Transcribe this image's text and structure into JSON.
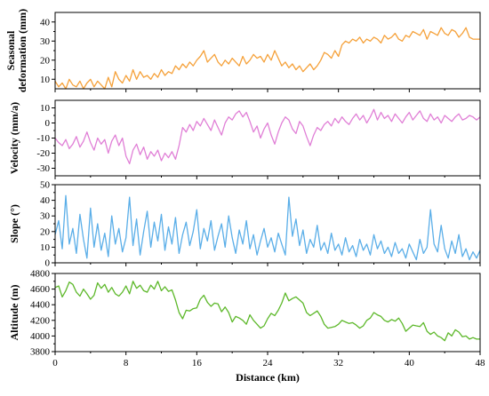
{
  "chart_data": [
    {
      "type": "line",
      "name": "seasonal",
      "ylabel": [
        "Seasonal",
        "deformation (mm)"
      ],
      "ylim": [
        5,
        45
      ],
      "yticks": [
        10,
        20,
        30,
        40
      ],
      "color": "#f5a13a",
      "series": [
        {
          "x": [
            0,
            0.4,
            0.8,
            1.2,
            1.6,
            2.0,
            2.4,
            2.8,
            3.2,
            3.6,
            4.0,
            4.4,
            4.8,
            5.2,
            5.6,
            6.0,
            6.4,
            6.8,
            7.2,
            7.6,
            8.0,
            8.4,
            8.8,
            9.2,
            9.6,
            10.0,
            10.4,
            10.8,
            11.2,
            11.6,
            12.0,
            12.4,
            12.8,
            13.2,
            13.6,
            14.0,
            14.4,
            14.8,
            15.2,
            15.6,
            16.0,
            16.4,
            16.8,
            17.2,
            17.6,
            18.0,
            18.4,
            18.8,
            19.2,
            19.6,
            20.0,
            20.4,
            20.8,
            21.2,
            21.6,
            22.0,
            22.4,
            22.8,
            23.2,
            23.6,
            24.0,
            24.4,
            24.8,
            25.2,
            25.6,
            26.0,
            26.4,
            26.8,
            27.2,
            27.6,
            28.0,
            28.4,
            28.8,
            29.2,
            29.6,
            30.0,
            30.4,
            30.8,
            31.2,
            31.6,
            32.0,
            32.4,
            32.8,
            33.2,
            33.6,
            34.0,
            34.4,
            34.8,
            35.2,
            35.6,
            36.0,
            36.4,
            36.8,
            37.2,
            37.6,
            38.0,
            38.4,
            38.8,
            39.2,
            39.6,
            40.0,
            40.4,
            40.8,
            41.2,
            41.6,
            42.0,
            42.4,
            42.8,
            43.2,
            43.6,
            44.0,
            44.4,
            44.8,
            45.2,
            45.6,
            46.0,
            46.4,
            46.8,
            47.2,
            47.6,
            48.0
          ],
          "y": [
            9,
            6,
            8,
            5,
            10,
            7,
            6,
            9,
            5,
            8,
            10,
            6,
            9,
            7,
            5,
            11,
            6,
            14,
            10,
            8,
            12,
            9,
            15,
            10,
            14,
            11,
            12,
            10,
            13,
            11,
            15,
            12,
            14,
            13,
            17,
            15,
            18,
            16,
            19,
            17,
            20,
            22,
            25,
            19,
            21,
            23,
            19,
            17,
            20,
            18,
            21,
            19,
            17,
            22,
            18,
            20,
            23,
            21,
            22,
            19,
            23,
            20,
            25,
            21,
            17,
            19,
            16,
            18,
            15,
            17,
            14,
            16,
            18,
            15,
            17,
            20,
            24,
            23,
            21,
            25,
            22,
            28,
            30,
            29,
            31,
            30,
            32,
            29,
            31,
            30,
            32,
            31,
            29,
            33,
            31,
            32,
            34,
            31,
            30,
            33,
            32,
            35,
            34,
            33,
            36,
            31,
            35,
            34,
            33,
            37,
            34,
            33,
            36,
            35,
            32,
            34,
            37,
            32,
            31,
            31,
            31
          ]
        }
      ]
    },
    {
      "type": "line",
      "name": "velocity",
      "ylabel": [
        "Velocity (mm/a)"
      ],
      "ylim": [
        -35,
        15
      ],
      "yticks": [
        -30,
        -20,
        -10,
        0,
        10
      ],
      "color": "#e07fd6",
      "series": [
        {
          "x": [
            0,
            0.4,
            0.8,
            1.2,
            1.6,
            2.0,
            2.4,
            2.8,
            3.2,
            3.6,
            4.0,
            4.4,
            4.8,
            5.2,
            5.6,
            6.0,
            6.4,
            6.8,
            7.2,
            7.6,
            8.0,
            8.4,
            8.8,
            9.2,
            9.6,
            10.0,
            10.4,
            10.8,
            11.2,
            11.6,
            12.0,
            12.4,
            12.8,
            13.2,
            13.6,
            14.0,
            14.4,
            14.8,
            15.2,
            15.6,
            16.0,
            16.4,
            16.8,
            17.2,
            17.6,
            18.0,
            18.4,
            18.8,
            19.2,
            19.6,
            20.0,
            20.4,
            20.8,
            21.2,
            21.6,
            22.0,
            22.4,
            22.8,
            23.2,
            23.6,
            24.0,
            24.4,
            24.8,
            25.2,
            25.6,
            26.0,
            26.4,
            26.8,
            27.2,
            27.6,
            28.0,
            28.4,
            28.8,
            29.2,
            29.6,
            30.0,
            30.4,
            30.8,
            31.2,
            31.6,
            32.0,
            32.4,
            32.8,
            33.2,
            33.6,
            34.0,
            34.4,
            34.8,
            35.2,
            35.6,
            36.0,
            36.4,
            36.8,
            37.2,
            37.6,
            38.0,
            38.4,
            38.8,
            39.2,
            39.6,
            40.0,
            40.4,
            40.8,
            41.2,
            41.6,
            42.0,
            42.4,
            42.8,
            43.2,
            43.6,
            44.0,
            44.4,
            44.8,
            45.2,
            45.6,
            46.0,
            46.4,
            46.8,
            47.2,
            47.6,
            48.0
          ],
          "y": [
            -10,
            -13,
            -15,
            -11,
            -17,
            -14,
            -9,
            -16,
            -12,
            -6,
            -13,
            -18,
            -10,
            -14,
            -11,
            -20,
            -12,
            -8,
            -15,
            -10,
            -22,
            -27,
            -18,
            -14,
            -21,
            -16,
            -24,
            -19,
            -22,
            -18,
            -25,
            -20,
            -23,
            -19,
            -24,
            -15,
            -3,
            -6,
            -1,
            -5,
            1,
            -2,
            3,
            -1,
            -5,
            2,
            -3,
            -8,
            0,
            4,
            2,
            6,
            8,
            4,
            7,
            1,
            -6,
            -2,
            -10,
            -4,
            0,
            -8,
            -14,
            -6,
            0,
            4,
            2,
            -4,
            -7,
            1,
            -2,
            -9,
            -15,
            -8,
            -3,
            -5,
            -1,
            1,
            -2,
            3,
            0,
            4,
            1,
            -1,
            3,
            6,
            2,
            5,
            0,
            4,
            9,
            2,
            7,
            3,
            5,
            1,
            6,
            3,
            0,
            4,
            7,
            2,
            5,
            8,
            3,
            1,
            6,
            2,
            4,
            0,
            5,
            3,
            1,
            4,
            6,
            2,
            3,
            5,
            4,
            2,
            4
          ]
        }
      ]
    },
    {
      "type": "line",
      "name": "slope",
      "ylabel": [
        "Slope (°)"
      ],
      "ylim": [
        0,
        50
      ],
      "yticks": [
        0,
        10,
        20,
        30,
        40,
        50
      ],
      "color": "#5aaee8",
      "series": [
        {
          "x": [
            0,
            0.4,
            0.8,
            1.2,
            1.6,
            2.0,
            2.4,
            2.8,
            3.2,
            3.6,
            4.0,
            4.4,
            4.8,
            5.2,
            5.6,
            6.0,
            6.4,
            6.8,
            7.2,
            7.6,
            8.0,
            8.4,
            8.8,
            9.2,
            9.6,
            10.0,
            10.4,
            10.8,
            11.2,
            11.6,
            12.0,
            12.4,
            12.8,
            13.2,
            13.6,
            14.0,
            14.4,
            14.8,
            15.2,
            15.6,
            16.0,
            16.4,
            16.8,
            17.2,
            17.6,
            18.0,
            18.4,
            18.8,
            19.2,
            19.6,
            20.0,
            20.4,
            20.8,
            21.2,
            21.6,
            22.0,
            22.4,
            22.8,
            23.2,
            23.6,
            24.0,
            24.4,
            24.8,
            25.2,
            25.6,
            26.0,
            26.4,
            26.8,
            27.2,
            27.6,
            28.0,
            28.4,
            28.8,
            29.2,
            29.6,
            30.0,
            30.4,
            30.8,
            31.2,
            31.6,
            32.0,
            32.4,
            32.8,
            33.2,
            33.6,
            34.0,
            34.4,
            34.8,
            35.2,
            35.6,
            36.0,
            36.4,
            36.8,
            37.2,
            37.6,
            38.0,
            38.4,
            38.8,
            39.2,
            39.6,
            40.0,
            40.4,
            40.8,
            41.2,
            41.6,
            42.0,
            42.4,
            42.8,
            43.2,
            43.6,
            44.0,
            44.4,
            44.8,
            45.2,
            45.6,
            46.0,
            46.4,
            46.8,
            47.2,
            47.6,
            48.0
          ],
          "y": [
            18,
            27,
            9,
            43,
            12,
            22,
            6,
            31,
            15,
            3,
            35,
            10,
            25,
            8,
            19,
            4,
            30,
            12,
            22,
            7,
            16,
            42,
            11,
            28,
            5,
            20,
            33,
            10,
            26,
            14,
            31,
            8,
            23,
            12,
            29,
            6,
            18,
            26,
            11,
            20,
            34,
            9,
            22,
            14,
            27,
            8,
            17,
            25,
            10,
            30,
            16,
            6,
            21,
            12,
            27,
            9,
            18,
            5,
            14,
            22,
            10,
            16,
            7,
            19,
            12,
            5,
            42,
            17,
            28,
            11,
            21,
            6,
            15,
            10,
            24,
            8,
            13,
            6,
            19,
            8,
            12,
            5,
            16,
            7,
            11,
            4,
            15,
            8,
            12,
            5,
            18,
            9,
            14,
            6,
            10,
            4,
            13,
            6,
            9,
            3,
            12,
            7,
            2,
            15,
            6,
            10,
            34,
            12,
            7,
            24,
            9,
            3,
            14,
            6,
            18,
            4,
            9,
            2,
            7,
            3,
            8
          ]
        }
      ]
    },
    {
      "type": "line",
      "name": "altitude",
      "ylabel": [
        "Altitude (m)"
      ],
      "ylim": [
        3800,
        4800
      ],
      "yticks": [
        3800,
        4000,
        4200,
        4400,
        4600,
        4800
      ],
      "color": "#5db82a",
      "xlabel": "Distance (km)",
      "xlim": [
        0,
        48
      ],
      "xticks": [
        0,
        8,
        16,
        24,
        32,
        40,
        48
      ],
      "series": [
        {
          "x": [
            0,
            0.4,
            0.8,
            1.2,
            1.6,
            2.0,
            2.4,
            2.8,
            3.2,
            3.6,
            4.0,
            4.4,
            4.8,
            5.2,
            5.6,
            6.0,
            6.4,
            6.8,
            7.2,
            7.6,
            8.0,
            8.4,
            8.8,
            9.2,
            9.6,
            10.0,
            10.4,
            10.8,
            11.2,
            11.6,
            12.0,
            12.4,
            12.8,
            13.2,
            13.6,
            14.0,
            14.4,
            14.8,
            15.2,
            15.6,
            16.0,
            16.4,
            16.8,
            17.2,
            17.6,
            18.0,
            18.4,
            18.8,
            19.2,
            19.6,
            20.0,
            20.4,
            20.8,
            21.2,
            21.6,
            22.0,
            22.4,
            22.8,
            23.2,
            23.6,
            24.0,
            24.4,
            24.8,
            25.2,
            25.6,
            26.0,
            26.4,
            26.8,
            27.2,
            27.6,
            28.0,
            28.4,
            28.8,
            29.2,
            29.6,
            30.0,
            30.4,
            30.8,
            31.2,
            31.6,
            32.0,
            32.4,
            32.8,
            33.2,
            33.6,
            34.0,
            34.4,
            34.8,
            35.2,
            35.6,
            36.0,
            36.4,
            36.8,
            37.2,
            37.6,
            38.0,
            38.4,
            38.8,
            39.2,
            39.6,
            40.0,
            40.4,
            40.8,
            41.2,
            41.6,
            42.0,
            42.4,
            42.8,
            43.2,
            43.6,
            44.0,
            44.4,
            44.8,
            45.2,
            45.6,
            46.0,
            46.4,
            46.8,
            47.2,
            47.6,
            48.0
          ],
          "y": [
            4620,
            4640,
            4500,
            4580,
            4690,
            4660,
            4560,
            4510,
            4600,
            4540,
            4470,
            4520,
            4680,
            4610,
            4660,
            4560,
            4620,
            4540,
            4510,
            4560,
            4640,
            4540,
            4700,
            4610,
            4650,
            4580,
            4560,
            4650,
            4600,
            4700,
            4580,
            4630,
            4570,
            4590,
            4460,
            4300,
            4220,
            4330,
            4320,
            4350,
            4360,
            4470,
            4520,
            4430,
            4380,
            4420,
            4410,
            4310,
            4370,
            4300,
            4180,
            4250,
            4230,
            4200,
            4150,
            4270,
            4200,
            4150,
            4100,
            4130,
            4220,
            4290,
            4260,
            4330,
            4420,
            4550,
            4450,
            4480,
            4500,
            4460,
            4420,
            4300,
            4260,
            4290,
            4320,
            4250,
            4150,
            4100,
            4110,
            4120,
            4150,
            4200,
            4180,
            4160,
            4170,
            4140,
            4100,
            4130,
            4200,
            4230,
            4300,
            4270,
            4250,
            4200,
            4180,
            4210,
            4190,
            4230,
            4160,
            4060,
            4100,
            4140,
            4130,
            4120,
            4170,
            4060,
            4020,
            4050,
            4000,
            3980,
            3940,
            4040,
            4000,
            4080,
            4050,
            3990,
            4000,
            3960,
            3980,
            3960,
            3960
          ]
        }
      ]
    }
  ]
}
